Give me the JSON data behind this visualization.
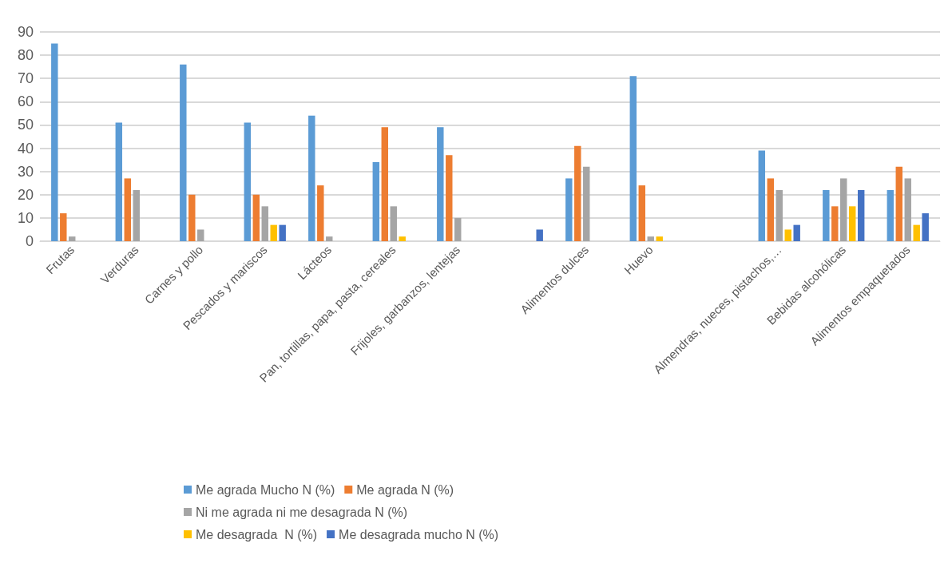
{
  "chart_data": {
    "type": "bar",
    "categories": [
      "Frutas",
      "Verduras",
      "Carnes y pollo",
      "Pescados y mariscos",
      "Lácteos",
      "Pan, tortillas, papa, pasta, cereales",
      "Frijoles, garbanzos, lentejas",
      null,
      "Alimentos dulces",
      "Huevo",
      null,
      "Almendras, nueces, pistachos,…",
      "Bebidas alcohólicas",
      "Alimentos empaquetados"
    ],
    "series": [
      {
        "name": "Me agrada Mucho N (%)",
        "color": "#5b9bd5",
        "values": [
          85,
          51,
          76,
          51,
          54,
          34,
          49,
          null,
          27,
          71,
          null,
          39,
          22,
          22
        ]
      },
      {
        "name": "Me agrada N (%)",
        "color": "#ed7d31",
        "values": [
          12,
          27,
          20,
          20,
          24,
          49,
          37,
          null,
          41,
          24,
          null,
          27,
          15,
          32
        ]
      },
      {
        "name": "Ni me agrada ni me desagrada N (%)",
        "color": "#a5a5a5",
        "values": [
          2,
          22,
          5,
          15,
          2,
          15,
          10,
          null,
          32,
          2,
          null,
          22,
          27,
          27
        ]
      },
      {
        "name": "Me desagrada  N (%)",
        "color": "#ffc000",
        "values": [
          null,
          null,
          null,
          7,
          null,
          2,
          null,
          null,
          null,
          2,
          null,
          5,
          15,
          7
        ]
      },
      {
        "name": "Me desagrada mucho N (%)",
        "color": "#4472c4",
        "values": [
          null,
          null,
          null,
          7,
          null,
          null,
          null,
          5,
          null,
          null,
          null,
          7,
          22,
          12
        ]
      }
    ],
    "ylim": [
      0,
      90
    ],
    "yticks": [
      0,
      10,
      20,
      30,
      40,
      50,
      60,
      70,
      80,
      90
    ],
    "grid": "y",
    "legend": "bottom"
  }
}
